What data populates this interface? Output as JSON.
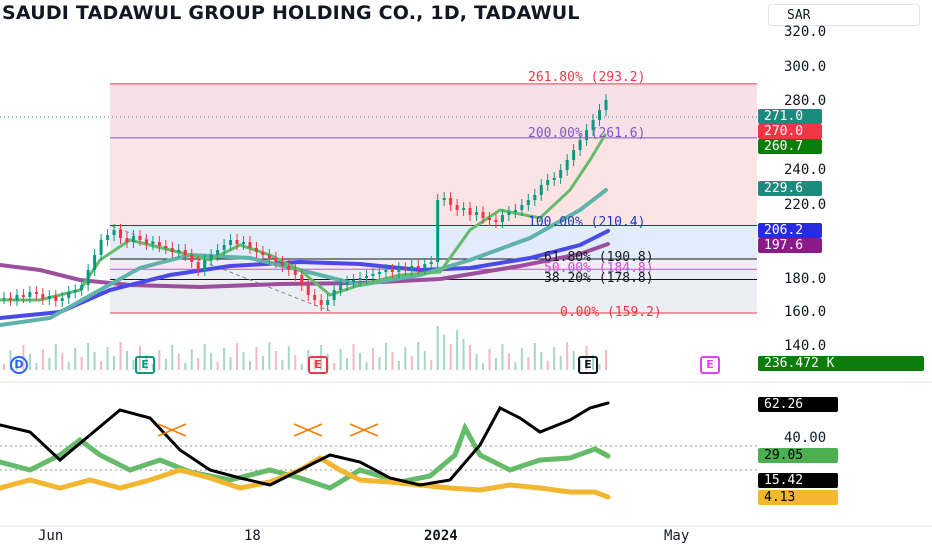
{
  "header": {
    "title": "SAUDI TADAWUL GROUP HOLDING CO., 1D, TADAWUL",
    "currency": "SAR"
  },
  "price_axis": [
    "320.0",
    "300.0",
    "280.0",
    "240.0",
    "220.0",
    "180.0",
    "160.0",
    "140.0"
  ],
  "indicator_axis": [
    "40.00"
  ],
  "time_axis": {
    "labels": [
      "Jun",
      "18",
      "2024",
      "May"
    ],
    "bold": "2024"
  },
  "price_tags": [
    {
      "value": "271.0",
      "color": "#1e8a7d"
    },
    {
      "value": "270.0",
      "color": "#f23645"
    },
    {
      "value": "260.7",
      "color": "#0a7d0a"
    },
    {
      "value": "229.6",
      "color": "#1e8a7d"
    },
    {
      "value": "206.2",
      "color": "#2a2ae0"
    },
    {
      "value": "197.6",
      "color": "#8b1a8b"
    },
    {
      "value": "236.472 K",
      "color": "#0a7d0a"
    }
  ],
  "indicator_tags": [
    {
      "value": "62.26",
      "color": "#000000"
    },
    {
      "value": "29.05",
      "color": "#4caf50"
    },
    {
      "value": "15.42",
      "color": "#000000"
    },
    {
      "value": "4.13",
      "color": "#f2b631"
    }
  ],
  "fibonacci": [
    {
      "level": 2.618,
      "label": "261.80% (293.2)",
      "price": 293.2,
      "color": "#f23645"
    },
    {
      "level": 2.0,
      "label": "200.00% (261.6)",
      "price": 261.6,
      "color": "#7e57c2"
    },
    {
      "level": 1.0,
      "label": "100.00% (210.4)",
      "price": 210.4,
      "color": "#1a3bc0"
    },
    {
      "level": 0.618,
      "label": "61.80% (190.8)",
      "price": 190.8,
      "color": "#131722"
    },
    {
      "level": 0.5,
      "label": "50.00% (184.8)",
      "price": 184.8,
      "color": "#d14bd1"
    },
    {
      "level": 0.382,
      "label": "38.20% (178.8)",
      "price": 178.8,
      "color": "#131722"
    },
    {
      "level": 0.0,
      "label": "0.00% (159.2)",
      "price": 159.2,
      "color": "#f23645"
    }
  ],
  "events": [
    {
      "letter": "D",
      "color": "#2962ff"
    },
    {
      "letter": "E",
      "color": "#089981"
    },
    {
      "letter": "E",
      "color": "#f23645"
    },
    {
      "letter": "E",
      "color": "#131722"
    },
    {
      "letter": "E",
      "color": "#e040fb"
    }
  ],
  "colors": {
    "up": "#089981",
    "down": "#f23645",
    "ma_fast": "#66bb6a",
    "ma_mid": "#5fb3aa",
    "ma_slow": "#4a4ae8",
    "ma_long": "#9c4f9c",
    "adx": "#000000",
    "di_plus": "#66bb6a",
    "di_minus": "#f2b631"
  }
}
